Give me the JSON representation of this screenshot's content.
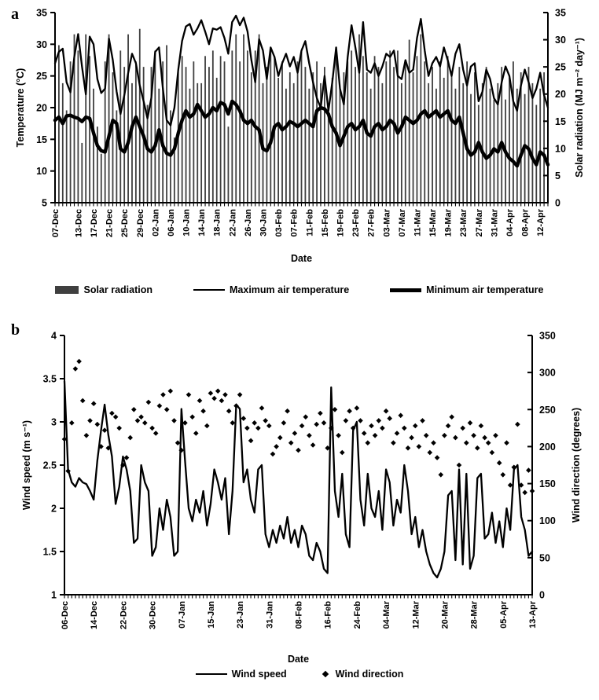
{
  "figure": {
    "panel_a_tag": "a",
    "panel_b_tag": "b",
    "ink_color": "#000000",
    "bar_color": "#3f3f3f"
  },
  "chart_data": [
    {
      "id": "a",
      "type": "bar+line",
      "title": "",
      "xlabel": "Date",
      "ylabel_left": "Temperature (°C)",
      "ylabel_right": "Solar radiation (MJ m⁻² day⁻¹)",
      "ylim_left": [
        5,
        35
      ],
      "yticks_left": [
        5,
        10,
        15,
        20,
        25,
        30,
        35
      ],
      "ylim_right": [
        0,
        35
      ],
      "yticks_right": [
        0,
        5,
        10,
        15,
        20,
        25,
        30,
        35
      ],
      "grid": false,
      "n_points": 129,
      "x_tick_labels": [
        "07-Dec",
        "13-Dec",
        "17-Dec",
        "21-Dec",
        "25-Dec",
        "29-Dec",
        "02-Jan",
        "06-Jan",
        "10-Jan",
        "14-Jan",
        "18-Jan",
        "22-Jan",
        "26-Jan",
        "30-Jan",
        "03-Feb",
        "07-Feb",
        "11-Feb",
        "15-Feb",
        "19-Feb",
        "23-Feb",
        "27-Feb",
        "03-Mar",
        "07-Mar",
        "11-Mar",
        "15-Mar",
        "19-Mar",
        "23-Mar",
        "27-Mar",
        "31-Mar",
        "04-Apr",
        "08-Apr",
        "12-Apr"
      ],
      "x_tick_label_indices": [
        0,
        6,
        10,
        14,
        18,
        22,
        26,
        30,
        34,
        38,
        42,
        46,
        50,
        54,
        58,
        62,
        66,
        70,
        74,
        78,
        82,
        86,
        90,
        94,
        98,
        102,
        106,
        110,
        114,
        118,
        122,
        126
      ],
      "series": [
        {
          "name": "Solar radiation",
          "type": "bar",
          "axis": "right",
          "color": "#3f3f3f",
          "values": [
            24,
            29,
            22,
            17,
            26,
            31,
            28,
            11,
            31,
            27,
            21,
            14,
            9,
            26,
            31,
            24,
            17,
            28,
            25,
            31,
            22,
            26,
            32,
            25,
            18,
            25,
            28,
            21,
            26,
            29,
            17,
            12,
            24,
            27,
            25,
            21,
            26,
            22,
            22,
            27,
            25,
            28,
            23,
            27,
            26,
            14,
            28,
            31,
            26,
            31,
            28,
            24,
            28,
            31,
            22,
            25,
            28,
            27,
            23,
            26,
            21,
            24,
            22,
            26,
            28,
            25,
            21,
            24,
            26,
            22,
            25,
            18,
            23,
            27,
            21,
            24,
            26,
            28,
            25,
            31,
            27,
            24,
            21,
            27,
            25,
            22,
            26,
            28,
            25,
            28,
            22,
            26,
            30,
            24,
            27,
            31,
            26,
            22,
            25,
            21,
            26,
            23,
            27,
            24,
            21,
            25,
            22,
            26,
            20,
            24,
            18,
            22,
            25,
            21,
            19,
            22,
            25,
            19,
            23,
            26,
            21,
            24,
            20,
            25,
            22,
            18,
            21,
            24,
            19
          ]
        },
        {
          "name": "Maximum air temperature",
          "type": "line",
          "axis": "left",
          "width": 2.3,
          "values": [
            27.0,
            28.8,
            29.3,
            24.0,
            22.4,
            28.0,
            31.6,
            26.5,
            22.1,
            31.2,
            30.0,
            24.5,
            22.3,
            23.0,
            30.9,
            27.5,
            22.5,
            19.0,
            22.0,
            25.5,
            28.5,
            27.0,
            23.5,
            21.0,
            18.3,
            21.5,
            28.8,
            29.5,
            23.0,
            18.0,
            17.2,
            20.0,
            26.0,
            30.5,
            32.8,
            33.2,
            31.5,
            32.5,
            33.8,
            32.0,
            30.0,
            32.5,
            32.3,
            32.7,
            31.0,
            28.5,
            33.5,
            34.5,
            33.0,
            34.2,
            32.0,
            27.5,
            24.0,
            30.8,
            29.0,
            24.5,
            29.5,
            28.0,
            25.0,
            27.0,
            28.5,
            26.5,
            28.0,
            25.5,
            29.0,
            30.5,
            27.0,
            24.0,
            21.5,
            20.0,
            25.0,
            19.5,
            24.0,
            29.5,
            23.0,
            20.5,
            28.0,
            33.0,
            29.5,
            25.5,
            33.5,
            26.0,
            25.5,
            27.0,
            25.0,
            26.5,
            28.5,
            28.0,
            29.0,
            25.0,
            24.5,
            27.5,
            25.5,
            26.0,
            31.0,
            34.0,
            29.0,
            25.0,
            27.0,
            28.0,
            26.5,
            29.5,
            27.5,
            25.0,
            28.5,
            30.0,
            26.0,
            23.5,
            26.5,
            27.0,
            21.0,
            22.5,
            26.0,
            24.5,
            21.5,
            20.5,
            24.0,
            26.5,
            25.0,
            21.0,
            19.5,
            23.5,
            26.0,
            24.0,
            21.5,
            23.0,
            25.5,
            22.0,
            20.0
          ]
        },
        {
          "name": "Minimum air temperature",
          "type": "line",
          "axis": "left",
          "width": 4.4,
          "values": [
            18.0,
            18.5,
            17.5,
            18.7,
            18.8,
            18.5,
            18.3,
            17.8,
            18.5,
            18.3,
            16.0,
            14.0,
            13.2,
            13.0,
            15.5,
            18.0,
            17.5,
            13.5,
            13.0,
            14.5,
            17.0,
            18.5,
            17.0,
            15.5,
            13.5,
            13.0,
            14.0,
            16.5,
            14.0,
            12.8,
            12.5,
            13.5,
            16.0,
            18.0,
            19.5,
            18.5,
            19.0,
            20.5,
            19.5,
            18.5,
            19.0,
            20.0,
            19.5,
            20.8,
            20.5,
            19.0,
            21.0,
            20.5,
            19.5,
            18.0,
            17.5,
            18.0,
            17.0,
            16.5,
            13.5,
            13.2,
            14.5,
            17.0,
            17.5,
            16.5,
            17.0,
            17.8,
            17.5,
            17.0,
            17.5,
            18.0,
            17.5,
            17.0,
            19.5,
            20.0,
            19.8,
            19.0,
            17.0,
            16.0,
            14.0,
            15.5,
            17.0,
            17.5,
            16.5,
            17.0,
            18.0,
            16.0,
            15.5,
            17.0,
            17.5,
            16.5,
            17.0,
            18.0,
            17.5,
            16.0,
            17.0,
            18.5,
            18.0,
            17.5,
            18.0,
            19.0,
            19.5,
            18.5,
            19.0,
            19.5,
            18.5,
            19.0,
            19.5,
            18.0,
            17.5,
            18.5,
            16.0,
            13.5,
            12.5,
            13.0,
            14.5,
            13.0,
            12.0,
            12.5,
            13.5,
            13.0,
            14.5,
            13.0,
            12.0,
            11.5,
            10.8,
            12.5,
            14.0,
            13.5,
            12.0,
            11.0,
            13.0,
            12.5,
            11.0
          ]
        }
      ]
    },
    {
      "id": "b",
      "type": "line+scatter",
      "title": "",
      "xlabel": "Date",
      "ylabel_left": "Wind speed (m s⁻¹)",
      "ylabel_right": "Wind direction (degrees)",
      "ylim_left": [
        1,
        4
      ],
      "yticks_left": [
        1,
        1.5,
        2,
        2.5,
        3,
        3.5,
        4
      ],
      "ylim_right": [
        0,
        350
      ],
      "yticks_right": [
        0,
        50,
        100,
        150,
        200,
        250,
        300,
        350
      ],
      "grid": false,
      "n_points": 129,
      "x_tick_labels": [
        "06-Dec",
        "14-Dec",
        "22-Dec",
        "30-Dec",
        "07-Jan",
        "15-Jan",
        "23-Jan",
        "31-Jan",
        "08-Feb",
        "16-Feb",
        "24-Feb",
        "04-Mar",
        "12-Mar",
        "20-Mar",
        "28-Mar",
        "05-Apr",
        "13-Apr"
      ],
      "x_tick_label_indices": [
        0,
        8,
        16,
        24,
        32,
        40,
        48,
        56,
        64,
        72,
        80,
        88,
        96,
        104,
        112,
        120,
        128
      ],
      "series": [
        {
          "name": "Wind speed",
          "type": "line",
          "axis": "left",
          "width": 2.3,
          "values": [
            3.47,
            2.45,
            2.3,
            2.25,
            2.35,
            2.3,
            2.28,
            2.2,
            2.1,
            2.55,
            2.9,
            3.2,
            2.85,
            2.6,
            2.05,
            2.25,
            2.6,
            2.45,
            2.2,
            1.6,
            1.65,
            2.5,
            2.3,
            2.2,
            1.45,
            1.55,
            2.0,
            1.75,
            2.1,
            1.9,
            1.45,
            1.5,
            3.15,
            2.55,
            2.0,
            1.85,
            2.1,
            1.95,
            2.2,
            1.8,
            2.05,
            2.45,
            2.3,
            2.1,
            2.35,
            1.7,
            2.2,
            3.2,
            3.15,
            2.3,
            2.45,
            2.1,
            1.95,
            2.45,
            2.5,
            1.7,
            1.55,
            1.75,
            1.6,
            1.8,
            1.65,
            1.9,
            1.6,
            1.75,
            1.55,
            1.8,
            1.7,
            1.45,
            1.4,
            1.6,
            1.5,
            1.3,
            1.25,
            3.4,
            2.2,
            1.9,
            2.4,
            1.7,
            1.55,
            2.9,
            3.0,
            2.1,
            1.8,
            2.4,
            2.0,
            1.9,
            2.2,
            1.75,
            2.45,
            2.3,
            1.8,
            2.1,
            1.95,
            2.5,
            2.2,
            1.7,
            1.9,
            1.55,
            1.75,
            1.5,
            1.35,
            1.25,
            1.2,
            1.3,
            1.5,
            2.15,
            2.2,
            1.4,
            2.45,
            1.35,
            2.4,
            1.3,
            1.45,
            2.35,
            2.4,
            1.65,
            1.7,
            1.95,
            1.6,
            1.85,
            1.55,
            2.0,
            1.75,
            2.45,
            2.5,
            1.9,
            1.75,
            1.45,
            1.5
          ]
        },
        {
          "name": "Wind direction",
          "type": "scatter",
          "axis": "right",
          "values": [
            210,
            167,
            232,
            305,
            315,
            262,
            215,
            235,
            258,
            230,
            200,
            222,
            198,
            245,
            240,
            225,
            175,
            185,
            212,
            250,
            235,
            240,
            232,
            260,
            225,
            218,
            255,
            270,
            250,
            275,
            235,
            205,
            195,
            232,
            270,
            240,
            218,
            262,
            248,
            228,
            272,
            265,
            275,
            262,
            270,
            248,
            232,
            255,
            270,
            238,
            225,
            208,
            232,
            225,
            252,
            235,
            228,
            190,
            200,
            212,
            232,
            248,
            205,
            218,
            195,
            228,
            240,
            215,
            202,
            230,
            245,
            232,
            198,
            225,
            250,
            215,
            192,
            235,
            248,
            225,
            252,
            235,
            218,
            205,
            228,
            215,
            235,
            225,
            248,
            238,
            205,
            218,
            242,
            225,
            198,
            212,
            228,
            200,
            235,
            215,
            192,
            205,
            185,
            162,
            215,
            228,
            240,
            212,
            175,
            225,
            205,
            232,
            215,
            198,
            228,
            212,
            205,
            192,
            215,
            178,
            162,
            205,
            148,
            172,
            230,
            148,
            138,
            168,
            140
          ]
        }
      ]
    }
  ]
}
